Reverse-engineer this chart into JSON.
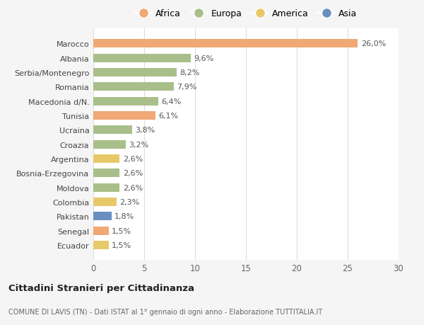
{
  "countries": [
    "Marocco",
    "Albania",
    "Serbia/Montenegro",
    "Romania",
    "Macedonia d/N.",
    "Tunisia",
    "Ucraina",
    "Croazia",
    "Argentina",
    "Bosnia-Erzegovina",
    "Moldova",
    "Colombia",
    "Pakistan",
    "Senegal",
    "Ecuador"
  ],
  "values": [
    26.0,
    9.6,
    8.2,
    7.9,
    6.4,
    6.1,
    3.8,
    3.2,
    2.6,
    2.6,
    2.6,
    2.3,
    1.8,
    1.5,
    1.5
  ],
  "labels": [
    "26,0%",
    "9,6%",
    "8,2%",
    "7,9%",
    "6,4%",
    "6,1%",
    "3,8%",
    "3,2%",
    "2,6%",
    "2,6%",
    "2,6%",
    "2,3%",
    "1,8%",
    "1,5%",
    "1,5%"
  ],
  "continents": [
    "Africa",
    "Europa",
    "Europa",
    "Europa",
    "Europa",
    "Africa",
    "Europa",
    "Europa",
    "America",
    "Europa",
    "Europa",
    "America",
    "Asia",
    "Africa",
    "America"
  ],
  "colors": {
    "Africa": "#F0A875",
    "Europa": "#A8BF8A",
    "America": "#E8C96A",
    "Asia": "#6A8FBF"
  },
  "legend_order": [
    "Africa",
    "Europa",
    "America",
    "Asia"
  ],
  "legend_colors": {
    "Africa": "#F0A875",
    "Europa": "#A8BF8A",
    "America": "#E8C96A",
    "Asia": "#6A8FBF"
  },
  "xlim": [
    0,
    30
  ],
  "xticks": [
    0,
    5,
    10,
    15,
    20,
    25,
    30
  ],
  "title": "Cittadini Stranieri per Cittadinanza",
  "subtitle": "COMUNE DI LAVIS (TN) - Dati ISTAT al 1° gennaio di ogni anno - Elaborazione TUTTITALIA.IT",
  "bg_color": "#f5f5f5",
  "plot_bg_color": "#ffffff"
}
